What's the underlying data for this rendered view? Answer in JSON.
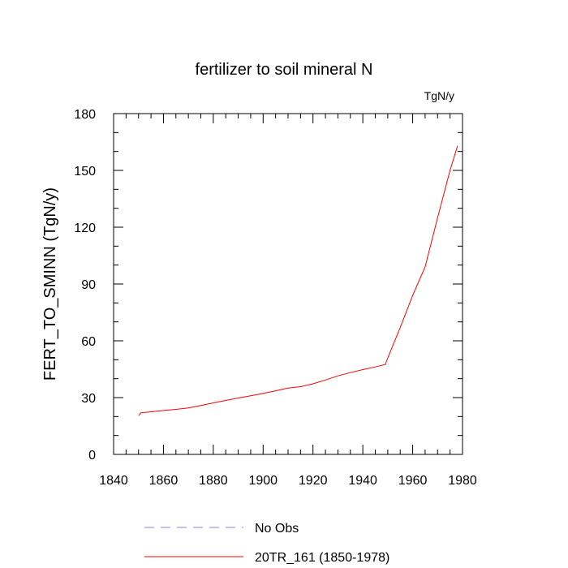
{
  "chart_data": {
    "type": "line",
    "title": "fertilizer to soil mineral N",
    "units": "TgN/y",
    "ylabel": "FERT_TO_SMINN  (TgN/y)",
    "xlabel": "",
    "xlim": [
      1840,
      1980
    ],
    "ylim": [
      0,
      180
    ],
    "x_ticks": [
      1840,
      1860,
      1880,
      1900,
      1920,
      1940,
      1960,
      1980
    ],
    "y_ticks": [
      0,
      30,
      60,
      90,
      120,
      150,
      180
    ],
    "x_tick_labels": [
      "1840",
      "1860",
      "1880",
      "1900",
      "1920",
      "1940",
      "1960",
      "1980"
    ],
    "y_tick_labels": [
      "0",
      "30",
      "60",
      "90",
      "120",
      "150",
      "180"
    ],
    "grid": false,
    "legend_position": "bottom",
    "series": [
      {
        "name": "No Obs",
        "color": "#8080ff",
        "style": "dashed",
        "x": [],
        "y": []
      },
      {
        "name": "20TR_161 (1850-1978)",
        "color": "#ff0000",
        "style": "solid",
        "x": [
          1850,
          1851,
          1855,
          1860,
          1865,
          1870,
          1875,
          1880,
          1885,
          1890,
          1895,
          1900,
          1905,
          1910,
          1915,
          1920,
          1925,
          1930,
          1935,
          1940,
          1945,
          1949,
          1950,
          1955,
          1960,
          1965,
          1970,
          1975,
          1978
        ],
        "y": [
          20.5,
          22,
          22.5,
          23.2,
          23.8,
          24.5,
          25.8,
          27.2,
          28.5,
          29.8,
          31,
          32.2,
          33.6,
          35,
          35.8,
          37.3,
          39.3,
          41.5,
          43.2,
          44.8,
          46.2,
          47.5,
          51,
          67,
          84,
          99,
          125,
          150,
          163
        ]
      }
    ]
  }
}
